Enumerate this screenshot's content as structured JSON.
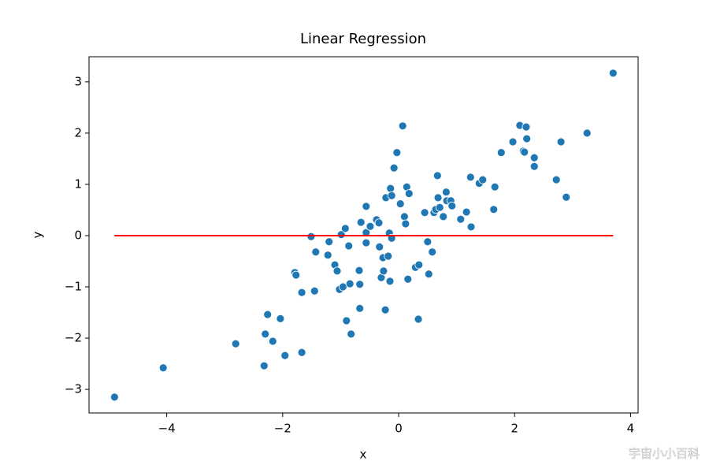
{
  "chart_data": {
    "type": "scatter",
    "title": "Linear Regression",
    "xlabel": "x",
    "ylabel": "y",
    "color": "#1f77b4",
    "x": [
      -4.9,
      -4.06,
      -2.81,
      -2.32,
      -2.3,
      -2.26,
      -2.17,
      -2.04,
      -1.96,
      -1.67,
      -1.79,
      -1.77,
      -1.67,
      -1.51,
      -1.45,
      -1.43,
      -1.22,
      -1.2,
      -1.1,
      -1.06,
      -1.02,
      -0.96,
      -0.99,
      -0.92,
      -0.9,
      -0.86,
      -0.84,
      -0.82,
      -0.68,
      -0.67,
      -0.67,
      -0.65,
      -0.56,
      -0.56,
      -0.56,
      -0.49,
      -0.38,
      -0.34,
      -0.33,
      -0.3,
      -0.27,
      -0.26,
      -0.23,
      -0.22,
      -0.18,
      -0.16,
      -0.15,
      -0.14,
      -0.12,
      -0.12,
      -0.08,
      -0.03,
      0.03,
      0.07,
      0.1,
      0.12,
      0.14,
      0.16,
      0.18,
      0.29,
      0.35,
      0.34,
      0.45,
      0.5,
      0.52,
      0.58,
      0.61,
      0.64,
      0.67,
      0.68,
      0.71,
      0.77,
      0.82,
      0.83,
      0.9,
      0.92,
      1.07,
      1.17,
      1.24,
      1.25,
      1.39,
      1.45,
      1.64,
      1.66,
      1.77,
      1.97,
      2.09,
      2.15,
      2.17,
      2.2,
      2.21,
      2.34,
      2.34,
      2.72,
      2.8,
      2.89,
      3.25,
      3.7
    ],
    "y": [
      -3.15,
      -2.58,
      -2.11,
      -2.54,
      -1.92,
      -1.54,
      -2.06,
      -1.62,
      -2.34,
      -2.28,
      -0.72,
      -0.77,
      -1.11,
      -0.02,
      -1.08,
      -0.32,
      -0.38,
      -0.12,
      -0.57,
      -0.69,
      -1.05,
      -1.0,
      0.02,
      0.14,
      -1.66,
      -0.2,
      -0.94,
      -1.92,
      -0.68,
      -0.95,
      -1.42,
      0.26,
      0.57,
      0.06,
      -0.14,
      0.18,
      0.31,
      0.25,
      -0.22,
      -0.82,
      -0.43,
      -0.69,
      -1.45,
      0.74,
      -0.4,
      0.05,
      -0.89,
      0.92,
      -0.05,
      0.78,
      1.32,
      1.62,
      0.62,
      2.14,
      0.37,
      0.23,
      0.95,
      -0.85,
      0.82,
      -0.62,
      -0.57,
      -1.63,
      0.45,
      -0.12,
      -0.75,
      -0.32,
      0.45,
      0.51,
      1.17,
      0.74,
      0.55,
      0.37,
      0.85,
      0.68,
      0.68,
      0.58,
      0.32,
      0.46,
      1.14,
      0.17,
      1.02,
      1.09,
      0.51,
      0.95,
      1.62,
      1.83,
      2.15,
      1.65,
      1.63,
      2.12,
      1.89,
      1.52,
      1.35,
      1.09,
      1.83,
      0.75,
      2.0,
      3.17
    ],
    "line": {
      "color": "#ff0000",
      "x": [
        -4.9,
        3.7
      ],
      "y": [
        0,
        0
      ]
    },
    "xlim": [
      -5.34,
      4.13
    ],
    "ylim": [
      -3.46,
      3.49
    ],
    "xticks": [
      {
        "value": -4,
        "label": "−4"
      },
      {
        "value": -2,
        "label": "−2"
      },
      0,
      2,
      4
    ],
    "yticks": [
      {
        "value": -3,
        "label": "−3"
      },
      {
        "value": -2,
        "label": "−2"
      },
      {
        "value": -1,
        "label": "−1"
      },
      0,
      1,
      2,
      3
    ],
    "annotations": [
      "宇宙小小百科"
    ]
  }
}
